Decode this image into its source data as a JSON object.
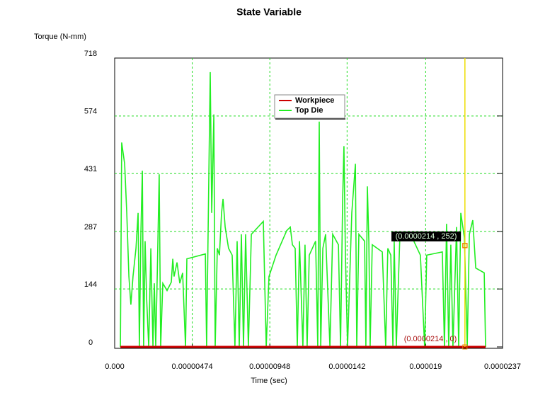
{
  "chart_data": {
    "type": "line",
    "title": "State Variable",
    "y_label": "Torque (N-mm)",
    "x_label": "Time (sec)",
    "xlim": [
      0,
      2.37e-05
    ],
    "xticks": [
      {
        "value": 0,
        "label": "0.000"
      },
      4.74e-06,
      9.48e-06,
      1.42e-05,
      1.9e-05,
      {
        "value": 2.37e-05,
        "label": "0.0000237"
      }
    ],
    "ylim": [
      0,
      718
    ],
    "yticks": [
      0,
      144,
      287,
      431,
      574,
      718
    ],
    "grid": true,
    "series": [
      {
        "name": "Workpiece",
        "color": "#cc0000",
        "x": [
          3.5e-07,
          2.266e-05
        ],
        "values": [
          0,
          0
        ]
      },
      {
        "name": "Top Die",
        "color": "#22ee22",
        "x": [
          3.5e-07,
          4.3e-07,
          6.1e-07,
          7.4e-07,
          8.7e-07,
          9.9e-07,
          1.12e-06,
          1.3e-06,
          1.43e-06,
          1.51e-06,
          1.6e-06,
          1.69e-06,
          1.77e-06,
          1.86e-06,
          1.95e-06,
          2.08e-06,
          2.21e-06,
          2.34e-06,
          2.42e-06,
          2.51e-06,
          2.6e-06,
          2.72e-06,
          2.81e-06,
          2.94e-06,
          3.2e-06,
          3.46e-06,
          3.55e-06,
          3.63e-06,
          3.81e-06,
          3.98e-06,
          4.15e-06,
          4.33e-06,
          4.41e-06,
          5.54e-06,
          5.62e-06,
          5.75e-06,
          5.84e-06,
          5.93e-06,
          6.06e-06,
          6.14e-06,
          6.27e-06,
          6.4e-06,
          6.53e-06,
          6.62e-06,
          6.75e-06,
          6.96e-06,
          7.18e-06,
          7.35e-06,
          7.48e-06,
          7.61e-06,
          7.74e-06,
          7.87e-06,
          8e-06,
          8.17e-06,
          8.35e-06,
          9.08e-06,
          9.26e-06,
          9.43e-06,
          9.86e-06,
          1.051e-05,
          1.073e-05,
          1.086e-05,
          1.103e-05,
          1.116e-05,
          1.129e-05,
          1.15e-05,
          1.163e-05,
          1.176e-05,
          1.189e-05,
          1.228e-05,
          1.241e-05,
          1.25e-05,
          1.259e-05,
          1.272e-05,
          1.289e-05,
          1.315e-05,
          1.332e-05,
          1.367e-05,
          1.38e-05,
          1.393e-05,
          1.401e-05,
          1.41e-05,
          1.423e-05,
          1.449e-05,
          1.471e-05,
          1.479e-05,
          1.492e-05,
          1.527e-05,
          1.535e-05,
          1.544e-05,
          1.553e-05,
          1.561e-05,
          1.574e-05,
          1.635e-05,
          1.656e-05,
          1.669e-05,
          1.687e-05,
          1.7e-05,
          1.708e-05,
          1.721e-05,
          1.743e-05,
          1.808e-05,
          1.868e-05,
          1.894e-05,
          1.907e-05,
          2.002e-05,
          2.015e-05,
          2.028e-05,
          2.041e-05,
          2.054e-05,
          2.067e-05,
          2.089e-05,
          2.102e-05,
          2.115e-05,
          2.137e-05,
          2.154e-05,
          2.167e-05,
          2.188e-05,
          2.206e-05,
          2.258e-05,
          2.266e-05
        ],
        "values": [
          0,
          508,
          455,
          333,
          175,
          105,
          175,
          245,
          333,
          0,
          280,
          438,
          0,
          263,
          123,
          0,
          245,
          0,
          158,
          0,
          175,
          429,
          0,
          158,
          140,
          161,
          219,
          175,
          210,
          158,
          184,
          0,
          219,
          231,
          0,
          420,
          683,
          333,
          578,
          0,
          245,
          228,
          333,
          368,
          298,
          245,
          228,
          0,
          263,
          0,
          280,
          0,
          280,
          0,
          280,
          312,
          0,
          175,
          228,
          289,
          298,
          254,
          245,
          0,
          263,
          0,
          254,
          0,
          228,
          263,
          0,
          560,
          0,
          245,
          280,
          0,
          280,
          254,
          0,
          368,
          499,
          228,
          0,
          333,
          455,
          0,
          280,
          263,
          0,
          399,
          263,
          0,
          254,
          236,
          0,
          245,
          228,
          0,
          263,
          0,
          280,
          280,
          228,
          0,
          228,
          236,
          0,
          306,
          0,
          254,
          0,
          298,
          0,
          333,
          271,
          0,
          280,
          315,
          196,
          184,
          0
        ]
      }
    ],
    "cursor": {
      "x": 2.14e-05,
      "y": 252
    },
    "annotations": [
      "(0.0000214 , 252)",
      "(0.0000214 , 0)"
    ]
  }
}
